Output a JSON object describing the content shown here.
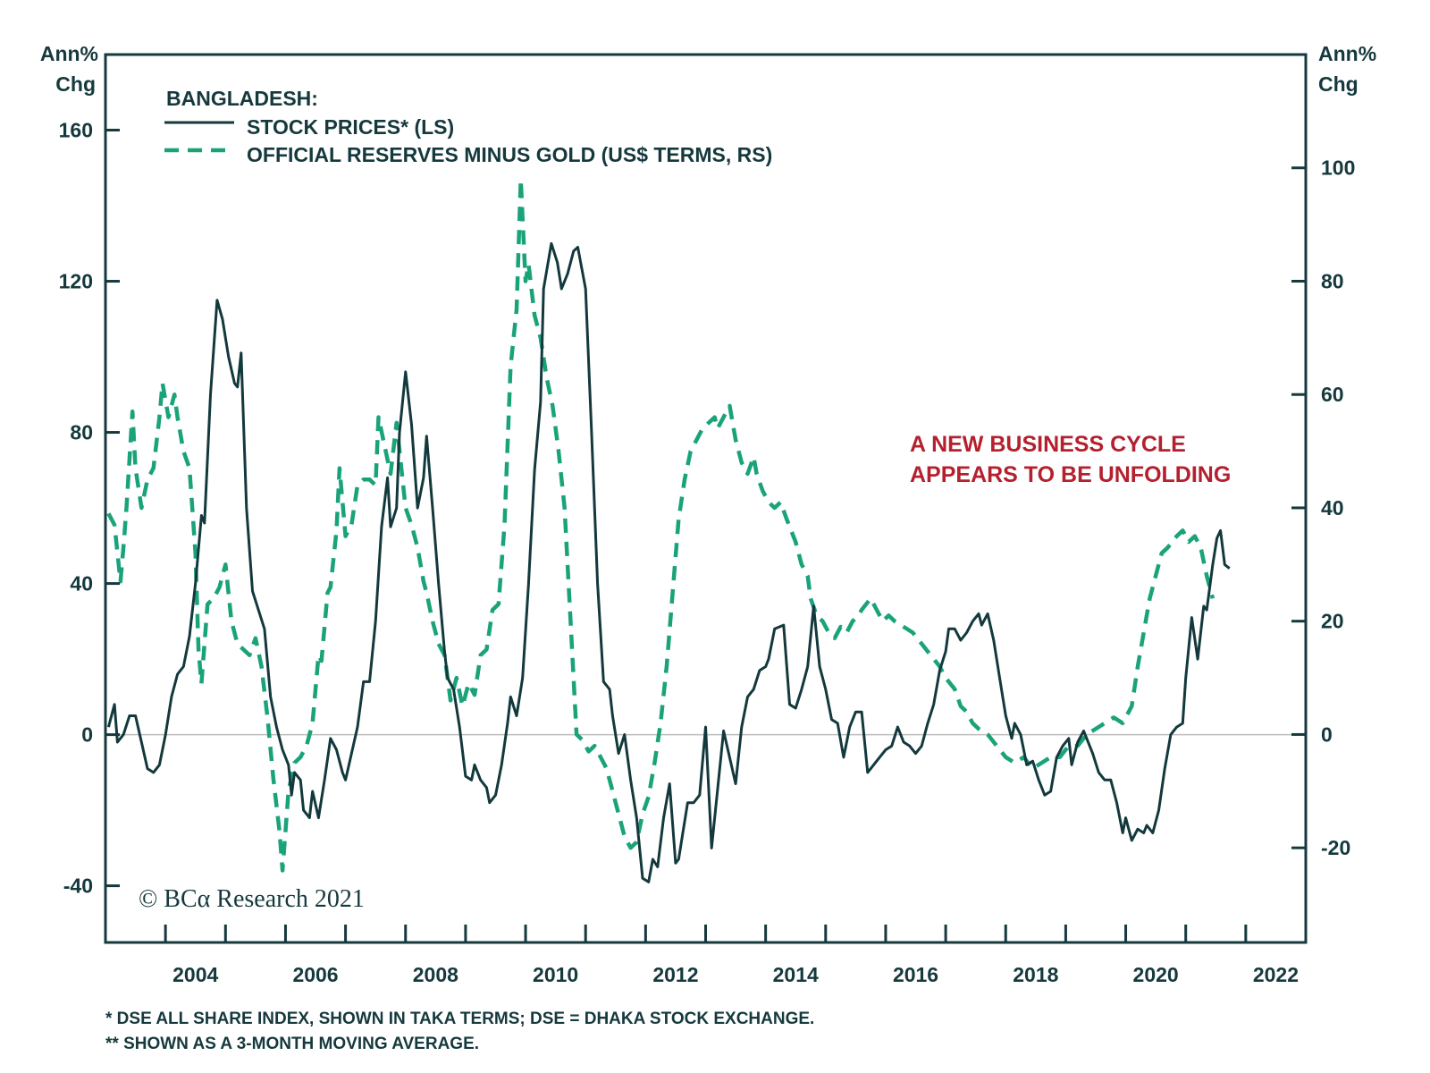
{
  "chart_data": {
    "type": "line",
    "title": "BANGLADESH:",
    "ylabel_left": [
      "Ann%",
      "Chg"
    ],
    "ylabel_right": [
      "Ann%",
      "Chg"
    ],
    "xlabel": "",
    "x_range": [
      2003.0,
      2023.0
    ],
    "x_tick_labels": [
      "2004",
      "2006",
      "2008",
      "2010",
      "2012",
      "2014",
      "2016",
      "2018",
      "2020",
      "2022"
    ],
    "x_tick_label_years": [
      2004,
      2006,
      2008,
      2010,
      2012,
      2014,
      2016,
      2018,
      2020,
      2022
    ],
    "y_left_ticks": [
      160,
      120,
      80,
      40,
      0,
      -40
    ],
    "y_left_range": [
      -55,
      180
    ],
    "y_right_ticks": [
      100,
      80,
      60,
      40,
      20,
      0,
      -20
    ],
    "y_right_range": [
      -36.7,
      120
    ],
    "zero_line": true,
    "grid": false,
    "legend_position": "top-left",
    "annotation": [
      "A NEW BUSINESS CYCLE",
      "APPEARS TO BE UNFOLDING"
    ],
    "credit": "© BCα Research 2021",
    "footnotes": [
      "*  DSE ALL SHARE INDEX, SHOWN IN TAKA TERMS; DSE = DHAKA STOCK EXCHANGE.",
      "** SHOWN AS A 3-MONTH MOVING AVERAGE."
    ],
    "series": [
      {
        "name": "STOCK PRICES* (LS)",
        "axis": "left",
        "style": "solid",
        "color": "#13393d",
        "x": [
          2003.05,
          2003.15,
          2003.2,
          2003.3,
          2003.4,
          2003.5,
          2003.6,
          2003.7,
          2003.8,
          2003.9,
          2004.0,
          2004.1,
          2004.2,
          2004.3,
          2004.4,
          2004.5,
          2004.6,
          2004.65,
          2004.75,
          2004.86,
          2004.95,
          2005.05,
          2005.15,
          2005.2,
          2005.26,
          2005.35,
          2005.45,
          2005.55,
          2005.65,
          2005.75,
          2005.85,
          2005.95,
          2006.05,
          2006.1,
          2006.15,
          2006.25,
          2006.3,
          2006.4,
          2006.45,
          2006.55,
          2006.65,
          2006.75,
          2006.85,
          2006.95,
          2007.0,
          2007.1,
          2007.2,
          2007.3,
          2007.4,
          2007.5,
          2007.6,
          2007.7,
          2007.75,
          2007.85,
          2007.9,
          2008.0,
          2008.1,
          2008.2,
          2008.3,
          2008.35,
          2008.45,
          2008.55,
          2008.65,
          2008.7,
          2008.8,
          2008.9,
          2009.0,
          2009.1,
          2009.15,
          2009.25,
          2009.35,
          2009.4,
          2009.5,
          2009.6,
          2009.7,
          2009.75,
          2009.85,
          2009.95,
          2010.05,
          2010.15,
          2010.25,
          2010.3,
          2010.43,
          2010.53,
          2010.6,
          2010.7,
          2010.8,
          2010.87,
          2011.0,
          2011.1,
          2011.2,
          2011.3,
          2011.4,
          2011.45,
          2011.55,
          2011.65,
          2011.75,
          2011.85,
          2011.95,
          2012.05,
          2012.12,
          2012.2,
          2012.3,
          2012.4,
          2012.5,
          2012.55,
          2012.7,
          2012.8,
          2012.9,
          2013.0,
          2013.1,
          2013.3,
          2013.5,
          2013.6,
          2013.7,
          2013.8,
          2013.9,
          2014.0,
          2014.05,
          2014.15,
          2014.3,
          2014.4,
          2014.5,
          2014.6,
          2014.7,
          2014.8,
          2014.9,
          2015.0,
          2015.1,
          2015.2,
          2015.3,
          2015.4,
          2015.5,
          2015.6,
          2015.7,
          2015.8,
          2015.9,
          2016.0,
          2016.1,
          2016.2,
          2016.3,
          2016.4,
          2016.5,
          2016.6,
          2016.7,
          2016.8,
          2016.9,
          2017.0,
          2017.05,
          2017.15,
          2017.25,
          2017.35,
          2017.45,
          2017.55,
          2017.6,
          2017.7,
          2017.8,
          2017.9,
          2018.0,
          2018.1,
          2018.15,
          2018.25,
          2018.35,
          2018.45,
          2018.55,
          2018.65,
          2018.75,
          2018.85,
          2018.95,
          2019.05,
          2019.1,
          2019.2,
          2019.3,
          2019.45,
          2019.55,
          2019.65,
          2019.75,
          2019.85,
          2019.95,
          2020.0,
          2020.1,
          2020.2,
          2020.3,
          2020.35,
          2020.45,
          2020.55,
          2020.65,
          2020.75,
          2020.85,
          2020.95,
          2021.0,
          2021.1,
          2021.2,
          2021.3,
          2021.35,
          2021.45,
          2021.52,
          2021.58,
          2021.65,
          2021.73
        ],
        "values": [
          2,
          8,
          -2,
          0,
          5,
          5,
          -2,
          -9,
          -10,
          -8,
          0,
          10,
          16,
          18,
          26,
          40,
          58,
          56,
          90,
          115,
          110,
          100,
          93,
          92,
          101,
          60,
          38,
          33,
          28,
          10,
          2,
          -4,
          -8,
          -16,
          -10,
          -12,
          -20,
          -22,
          -15,
          -22,
          -12,
          -1,
          -4,
          -10,
          -12,
          -5,
          2,
          14,
          14,
          30,
          55,
          68,
          55,
          60,
          80,
          96,
          82,
          60,
          68,
          79,
          60,
          40,
          22,
          15,
          12,
          2,
          -11,
          -12,
          -8,
          -12,
          -14,
          -18,
          -16,
          -8,
          3,
          10,
          5,
          15,
          40,
          70,
          88,
          118,
          130,
          125,
          118,
          122,
          128,
          129,
          118,
          80,
          40,
          14,
          12,
          5,
          -5,
          0,
          -12,
          -22,
          -38,
          -39,
          -33,
          -35,
          -22,
          -13,
          -34,
          -33,
          -18,
          -18,
          -16,
          2,
          -30,
          1,
          -13,
          2,
          10,
          12,
          17,
          18,
          20,
          28,
          29,
          8,
          7,
          12,
          18,
          34,
          18,
          12,
          4,
          3,
          -6,
          2,
          6,
          6,
          -10,
          -8,
          -6,
          -4,
          -3,
          2,
          -2,
          -3,
          -5,
          -3,
          3,
          8,
          17,
          22,
          28,
          28,
          25,
          27,
          30,
          32,
          29,
          32,
          25,
          15,
          5,
          -1,
          3,
          0,
          -8,
          -7,
          -12,
          -16,
          -15,
          -6,
          -3,
          -1,
          -8,
          -2,
          1,
          -5,
          -10,
          -12,
          -12,
          -18,
          -26,
          -22,
          -28,
          -25,
          -26,
          -24,
          -26,
          -20,
          -9,
          0,
          2,
          3,
          15,
          31,
          20,
          34,
          33,
          45,
          52,
          54,
          45,
          44
        ]
      },
      {
        "name": "OFFICIAL RESERVES MINUS GOLD (US$ TERMS, RS)",
        "axis": "right",
        "style": "dashed",
        "color": "#1aa37a",
        "x": [
          2003.05,
          2003.15,
          2003.25,
          2003.3,
          2003.35,
          2003.45,
          2003.5,
          2003.6,
          2003.7,
          2003.8,
          2003.9,
          2003.95,
          2004.05,
          2004.15,
          2004.2,
          2004.3,
          2004.4,
          2004.5,
          2004.55,
          2004.6,
          2004.7,
          2004.8,
          2004.9,
          2005.0,
          2005.1,
          2005.2,
          2005.3,
          2005.4,
          2005.5,
          2005.6,
          2005.7,
          2005.8,
          2005.9,
          2005.95,
          2006.05,
          2006.15,
          2006.25,
          2006.35,
          2006.45,
          2006.55,
          2006.6,
          2006.7,
          2006.75,
          2006.85,
          2006.9,
          2007.0,
          2007.1,
          2007.2,
          2007.3,
          2007.4,
          2007.5,
          2007.55,
          2007.65,
          2007.75,
          2007.85,
          2007.95,
          2008.0,
          2008.1,
          2008.2,
          2008.3,
          2008.35,
          2008.45,
          2008.55,
          2008.65,
          2008.75,
          2008.85,
          2008.95,
          2009.05,
          2009.15,
          2009.25,
          2009.35,
          2009.45,
          2009.55,
          2009.65,
          2009.75,
          2009.85,
          2009.92,
          2010.0,
          2010.05,
          2010.15,
          2010.25,
          2010.35,
          2010.45,
          2010.55,
          2010.65,
          2010.75,
          2010.85,
          2010.95,
          2011.05,
          2011.15,
          2011.25,
          2011.35,
          2011.45,
          2011.55,
          2011.65,
          2011.75,
          2011.85,
          2011.95,
          2012.05,
          2012.15,
          2012.25,
          2012.35,
          2012.45,
          2012.55,
          2012.65,
          2012.75,
          2012.85,
          2012.95,
          2013.05,
          2013.15,
          2013.2,
          2013.3,
          2013.4,
          2013.5,
          2013.6,
          2013.7,
          2013.8,
          2013.85,
          2013.95,
          2014.05,
          2014.15,
          2014.25,
          2014.35,
          2014.5,
          2014.6,
          2014.7,
          2014.75,
          2014.85,
          2014.95,
          2015.05,
          2015.15,
          2015.25,
          2015.35,
          2015.45,
          2015.55,
          2015.6,
          2015.75,
          2015.85,
          2015.95,
          2016.05,
          2016.15,
          2016.3,
          2016.45,
          2016.6,
          2016.75,
          2016.9,
          2017.0,
          2017.15,
          2017.25,
          2017.35,
          2017.45,
          2017.55,
          2017.7,
          2017.85,
          2018.0,
          2018.15,
          2018.3,
          2018.45,
          2018.6,
          2018.75,
          2018.9,
          2019.05,
          2019.2,
          2019.35,
          2019.5,
          2019.65,
          2019.8,
          2019.95,
          2020.1,
          2020.2,
          2020.3,
          2020.4,
          2020.5,
          2020.6,
          2020.7,
          2020.85,
          2020.95,
          2021.05,
          2021.15,
          2021.25,
          2021.35,
          2021.45
        ],
        "values": [
          39,
          37,
          27,
          33,
          40,
          57,
          47,
          40,
          45,
          47,
          56,
          62,
          56,
          60,
          56,
          50,
          47,
          32,
          15,
          9,
          23,
          24,
          26,
          30,
          20,
          16,
          15,
          14,
          17,
          12,
          3,
          -8,
          -17,
          -24,
          -10,
          -5,
          -4,
          -2,
          2,
          14,
          13,
          25,
          26,
          36,
          47,
          35,
          37,
          44,
          45,
          45,
          44,
          56,
          51,
          46,
          55,
          45,
          40,
          37,
          33,
          27,
          25,
          20,
          16,
          14,
          6,
          10,
          5,
          9,
          7,
          14,
          15,
          22,
          23,
          37,
          65,
          75,
          98,
          80,
          83,
          74,
          70,
          63,
          58,
          50,
          40,
          20,
          0,
          -1,
          -3,
          -2,
          -4,
          -6,
          -10,
          -14,
          -18,
          -20,
          -19,
          -14,
          -11,
          -5,
          2,
          12,
          25,
          38,
          45,
          50,
          52,
          54,
          55,
          56,
          54,
          56,
          58,
          52,
          48,
          46,
          49,
          46,
          43,
          41,
          40,
          41,
          38,
          34,
          30,
          28,
          24,
          21,
          20,
          18,
          17,
          19,
          18,
          20,
          21,
          22,
          24,
          22,
          20,
          21,
          20,
          19,
          18,
          16,
          14,
          12,
          10,
          8,
          5,
          4,
          2,
          1,
          0,
          -2,
          -4,
          -5,
          -4,
          -6,
          -5,
          -4,
          -4,
          -2,
          -2,
          0,
          1,
          2,
          3,
          2,
          5,
          12,
          18,
          24,
          28,
          32,
          33,
          35,
          36,
          34,
          35,
          33,
          28,
          24
        ]
      }
    ]
  }
}
